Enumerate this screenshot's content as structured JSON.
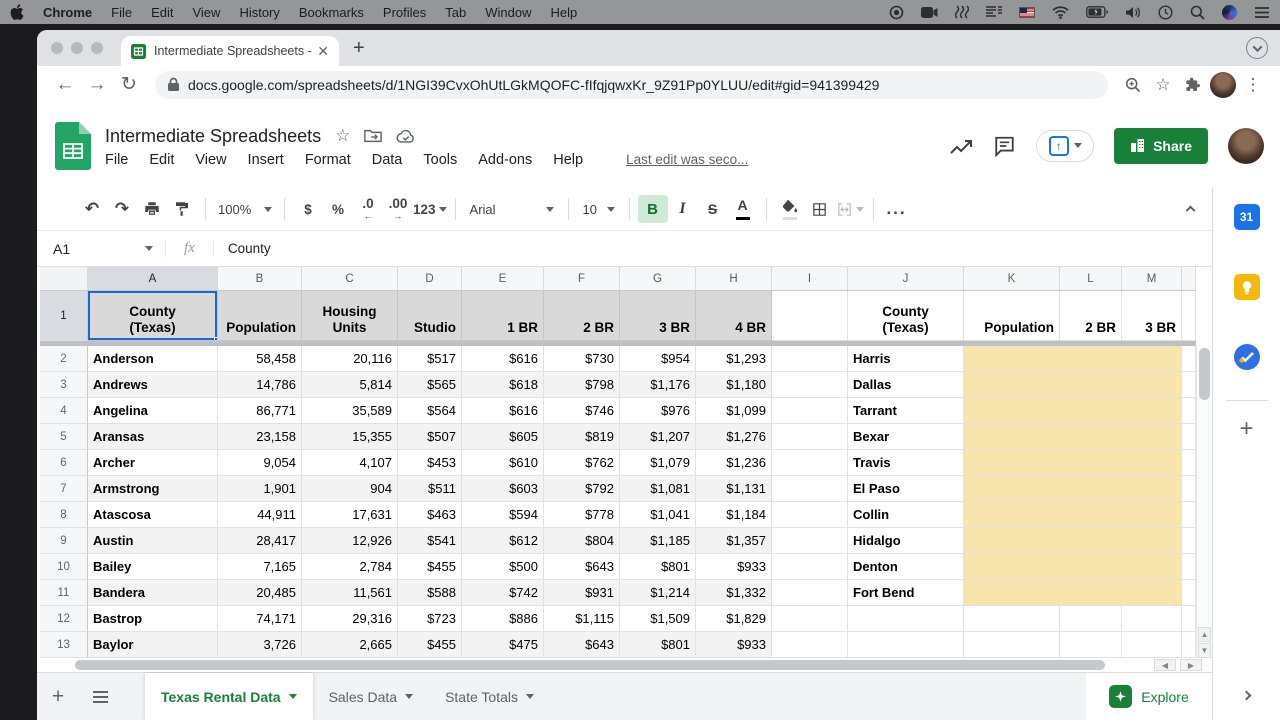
{
  "menubar": {
    "items": [
      "Chrome",
      "File",
      "Edit",
      "View",
      "History",
      "Bookmarks",
      "Profiles",
      "Tab",
      "Window",
      "Help"
    ]
  },
  "browser": {
    "tab_title": "Intermediate Spreadsheets - G",
    "url": "docs.google.com/spreadsheets/d/1NGI39CvxOhUtLGkMQOFC-fIfqjqwxKr_9Z91Pp0YLUU/edit#gid=941399429"
  },
  "header": {
    "title": "Intermediate Spreadsheets",
    "menus": [
      "File",
      "Edit",
      "View",
      "Insert",
      "Format",
      "Data",
      "Tools",
      "Add-ons",
      "Help"
    ],
    "last_edit": "Last edit was seco...",
    "share_label": "Share"
  },
  "toolbar": {
    "zoom": "100%",
    "currency": "$",
    "percent": "%",
    "dec_dec": ".0",
    "dec_inc": ".00",
    "more_formats": "123",
    "font": "Arial",
    "font_size": "10",
    "bold": "B",
    "italic": "I",
    "strikethrough": "S",
    "text_color": "A",
    "more": "..."
  },
  "formula_bar": {
    "cell_ref": "A1",
    "fx": "fx",
    "value": "County"
  },
  "grid": {
    "columns": [
      "A",
      "B",
      "C",
      "D",
      "E",
      "F",
      "G",
      "H",
      "I",
      "J",
      "K",
      "L",
      "M"
    ],
    "header_labels": {
      "A": "County\n(Texas)",
      "B": "Population",
      "C": "Housing\nUnits",
      "D": "Studio",
      "E": "1 BR",
      "F": "2 BR",
      "G": "3 BR",
      "H": "4 BR",
      "I": "",
      "J": "County\n(Texas)",
      "K": "Population",
      "L": "2 BR",
      "M": "3 BR"
    },
    "rows": [
      {
        "n": "2",
        "A": "Anderson",
        "B": "58,458",
        "C": "20,116",
        "D": "$517",
        "E": "$616",
        "F": "$730",
        "G": "$954",
        "H": "$1,293",
        "J": "Harris"
      },
      {
        "n": "3",
        "A": "Andrews",
        "B": "14,786",
        "C": "5,814",
        "D": "$565",
        "E": "$618",
        "F": "$798",
        "G": "$1,176",
        "H": "$1,180",
        "J": "Dallas"
      },
      {
        "n": "4",
        "A": "Angelina",
        "B": "86,771",
        "C": "35,589",
        "D": "$564",
        "E": "$616",
        "F": "$746",
        "G": "$976",
        "H": "$1,099",
        "J": "Tarrant"
      },
      {
        "n": "5",
        "A": "Aransas",
        "B": "23,158",
        "C": "15,355",
        "D": "$507",
        "E": "$605",
        "F": "$819",
        "G": "$1,207",
        "H": "$1,276",
        "J": "Bexar"
      },
      {
        "n": "6",
        "A": "Archer",
        "B": "9,054",
        "C": "4,107",
        "D": "$453",
        "E": "$610",
        "F": "$762",
        "G": "$1,079",
        "H": "$1,236",
        "J": "Travis"
      },
      {
        "n": "7",
        "A": "Armstrong",
        "B": "1,901",
        "C": "904",
        "D": "$511",
        "E": "$603",
        "F": "$792",
        "G": "$1,081",
        "H": "$1,131",
        "J": "El Paso"
      },
      {
        "n": "8",
        "A": "Atascosa",
        "B": "44,911",
        "C": "17,631",
        "D": "$463",
        "E": "$594",
        "F": "$778",
        "G": "$1,041",
        "H": "$1,184",
        "J": "Collin"
      },
      {
        "n": "9",
        "A": "Austin",
        "B": "28,417",
        "C": "12,926",
        "D": "$541",
        "E": "$612",
        "F": "$804",
        "G": "$1,185",
        "H": "$1,357",
        "J": "Hidalgo"
      },
      {
        "n": "10",
        "A": "Bailey",
        "B": "7,165",
        "C": "2,784",
        "D": "$455",
        "E": "$500",
        "F": "$643",
        "G": "$801",
        "H": "$933",
        "J": "Denton"
      },
      {
        "n": "11",
        "A": "Bandera",
        "B": "20,485",
        "C": "11,561",
        "D": "$588",
        "E": "$742",
        "F": "$931",
        "G": "$1,214",
        "H": "$1,332",
        "J": "Fort Bend"
      },
      {
        "n": "12",
        "A": "Bastrop",
        "B": "74,171",
        "C": "29,316",
        "D": "$723",
        "E": "$886",
        "F": "$1,115",
        "G": "$1,509",
        "H": "$1,829",
        "J": ""
      },
      {
        "n": "13",
        "A": "Baylor",
        "B": "3,726",
        "C": "2,665",
        "D": "$455",
        "E": "$475",
        "F": "$643",
        "G": "$801",
        "H": "$933",
        "J": ""
      }
    ]
  },
  "sheet_tabs": {
    "active": "Texas Rental Data",
    "others": [
      "Sales Data",
      "State Totals"
    ],
    "explore_label": "Explore"
  },
  "side_panel": {
    "calendar_label": "31"
  },
  "colors": {
    "accent_green": "#188038",
    "selection_blue": "#1967d2",
    "header_fill": "#d9d9d9",
    "band_fill": "#f3f3f3",
    "highlight_yellow": "#f8e5ad"
  }
}
